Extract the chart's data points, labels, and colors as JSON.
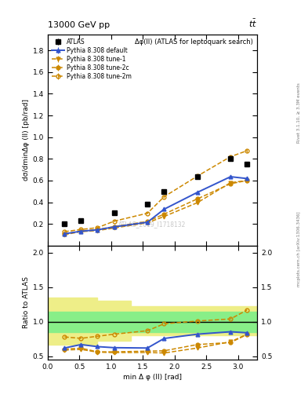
{
  "title_top": "13000 GeV pp",
  "title_top_right": "tt",
  "plot_label": "Δφ(ll) (ATLAS for leptoquark search)",
  "watermark": "ATLAS_2019_I1718132",
  "right_label_top": "Rivet 3.1.10, ≥ 3.3M events",
  "right_label_bot": "mcplots.cern.ch [arXiv:1306.3436]",
  "ylabel_main": "dσ/dminΔφ (ll) [pb/rad]",
  "ylabel_ratio": "Ratio to ATLAS",
  "xlabel": "min Δ φ (ll) [rad]",
  "x_data": [
    0.262,
    0.524,
    0.785,
    1.047,
    1.571,
    1.833,
    2.356,
    2.88,
    3.142
  ],
  "atlas_y": [
    0.2,
    0.228,
    null,
    0.302,
    0.385,
    0.5,
    0.636,
    0.803,
    0.75
  ],
  "atlas_yerr": [
    0.01,
    0.01,
    null,
    0.012,
    0.015,
    0.018,
    0.022,
    0.025,
    0.022
  ],
  "pythia_default_y": [
    0.108,
    0.132,
    0.145,
    0.172,
    0.215,
    0.335,
    0.49,
    0.635,
    0.618
  ],
  "pythia_default_yerr": [
    0.003,
    0.003,
    0.003,
    0.004,
    0.005,
    0.007,
    0.009,
    0.01,
    0.01
  ],
  "pythia_tune1_y": [
    0.1,
    0.128,
    0.138,
    0.162,
    0.21,
    0.268,
    0.395,
    0.58,
    0.6
  ],
  "pythia_tune1_yerr": [
    0.003,
    0.003,
    0.003,
    0.004,
    0.005,
    0.006,
    0.008,
    0.01,
    0.01
  ],
  "pythia_tune2c_y": [
    0.108,
    0.133,
    0.148,
    0.175,
    0.222,
    0.29,
    0.43,
    0.57,
    0.6
  ],
  "pythia_tune2c_yerr": [
    0.003,
    0.003,
    0.003,
    0.004,
    0.005,
    0.006,
    0.008,
    0.01,
    0.01
  ],
  "pythia_tune2m_y": [
    0.128,
    0.148,
    0.165,
    0.225,
    0.298,
    0.45,
    0.64,
    0.82,
    0.875
  ],
  "pythia_tune2m_yerr": [
    0.003,
    0.004,
    0.004,
    0.005,
    0.006,
    0.008,
    0.011,
    0.013,
    0.014
  ],
  "ratio_default_y": [
    0.62,
    0.67,
    0.64,
    0.625,
    0.62,
    0.758,
    0.82,
    0.855,
    0.84
  ],
  "ratio_tune1_y": [
    0.59,
    0.6,
    0.56,
    0.555,
    0.555,
    0.548,
    0.62,
    0.71,
    0.82
  ],
  "ratio_tune2c_y": [
    0.605,
    0.618,
    0.565,
    0.565,
    0.575,
    0.58,
    0.67,
    0.7,
    0.815
  ],
  "ratio_tune2m_y": [
    0.78,
    0.76,
    0.79,
    0.82,
    0.87,
    0.97,
    1.01,
    1.04,
    1.17
  ],
  "band_x_edges": [
    0.0,
    0.393,
    0.785,
    1.309,
    2.094,
    2.618,
    3.3
  ],
  "band_green_lo": [
    0.85,
    0.85,
    0.85,
    0.85,
    0.85,
    0.85,
    0.85
  ],
  "band_green_hi": [
    1.15,
    1.15,
    1.15,
    1.15,
    1.15,
    1.15,
    1.15
  ],
  "band_yellow_lo": [
    0.67,
    0.67,
    0.72,
    0.8,
    0.8,
    0.8,
    0.8
  ],
  "band_yellow_hi": [
    1.35,
    1.35,
    1.3,
    1.22,
    1.22,
    1.22,
    1.22
  ],
  "color_atlas": "#000000",
  "color_default": "#3355cc",
  "color_tune": "#cc8800",
  "main_ylim": [
    0,
    1.95
  ],
  "main_yticks": [
    0.2,
    0.4,
    0.6,
    0.8,
    1.0,
    1.2,
    1.4,
    1.6,
    1.8
  ],
  "ratio_ylim": [
    0.45,
    2.1
  ],
  "ratio_yticks": [
    0.5,
    1.0,
    1.5,
    2.0
  ],
  "xlim": [
    0.0,
    3.3
  ]
}
